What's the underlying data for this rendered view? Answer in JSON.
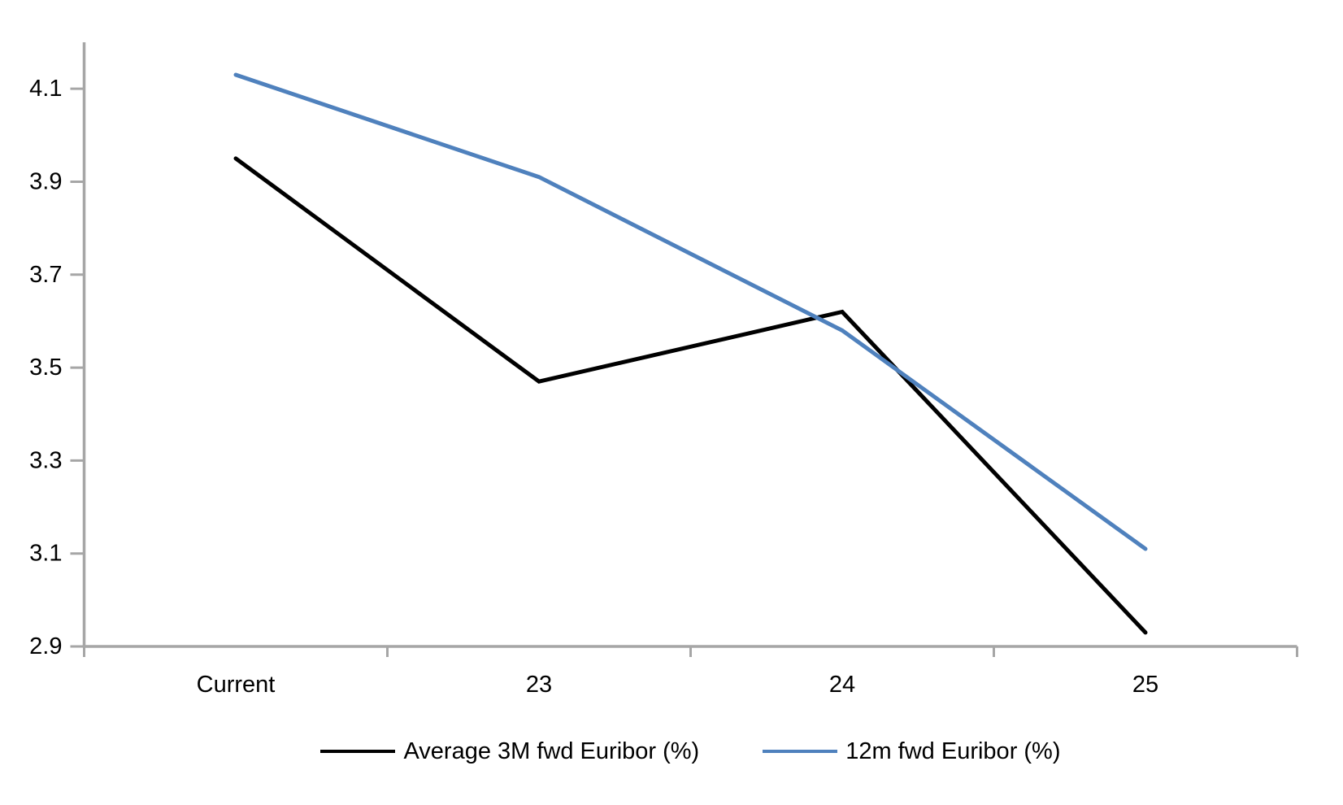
{
  "chart_data": {
    "type": "line",
    "title": "",
    "categories": [
      "Current",
      "23",
      "24",
      "25"
    ],
    "series": [
      {
        "name": "Average 3M fwd Euribor (%)",
        "color": "#000000",
        "values": [
          3.95,
          3.47,
          3.62,
          2.93
        ]
      },
      {
        "name": "12m fwd Euribor (%)",
        "color": "#4F81BD",
        "values": [
          4.13,
          3.91,
          3.58,
          3.11
        ]
      }
    ],
    "xlabel": "",
    "ylabel": "",
    "ylim": [
      2.9,
      4.2
    ],
    "y_ticks": [
      2.9,
      3.1,
      3.3,
      3.5,
      3.7,
      3.9,
      4.1
    ],
    "y_tick_labels": [
      "2.9",
      "3.1",
      "3.3",
      "3.5",
      "3.7",
      "3.9",
      "4.1"
    ],
    "grid": false,
    "legend_position": "bottom",
    "axis_color": "#A6A6A6",
    "text_color": "#000000",
    "background_color": "#FFFFFF"
  }
}
